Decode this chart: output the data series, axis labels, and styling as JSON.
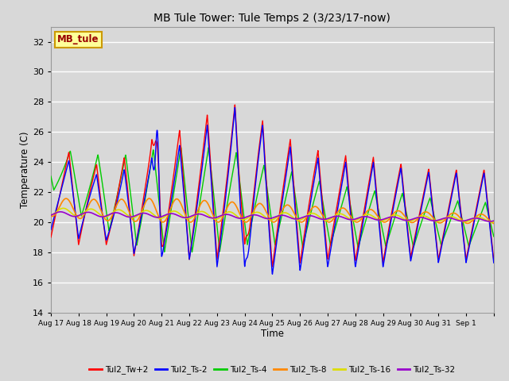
{
  "title": "MB Tule Tower: Tule Temps 2 (3/23/17-now)",
  "xlabel": "Time",
  "ylabel": "Temperature (C)",
  "ylim": [
    14,
    33
  ],
  "yticks": [
    14,
    16,
    18,
    20,
    22,
    24,
    26,
    28,
    30,
    32
  ],
  "background_color": "#d8d8d8",
  "plot_bg_color": "#d8d8d8",
  "grid_color": "#ffffff",
  "series_colors": {
    "Tul2_Tw+2": "#ff0000",
    "Tul2_Ts-2": "#0000ff",
    "Tul2_Ts-4": "#00cc00",
    "Tul2_Ts-8": "#ff8800",
    "Tul2_Ts-16": "#dddd00",
    "Tul2_Ts-32": "#9900cc"
  },
  "legend_label": "MB_tule",
  "legend_box_color": "#ffff99",
  "legend_box_edge": "#cc9900",
  "n_days": 16,
  "xlabels": [
    "Aug 17",
    "Aug 18",
    "Aug 19",
    "Aug 20",
    "Aug 21",
    "Aug 22",
    "Aug 23",
    "Aug 24",
    "Aug 25",
    "Aug 26",
    "Aug 27",
    "Aug 28",
    "Aug 29",
    "Aug 30",
    "Aug 31",
    "Sep 1"
  ]
}
